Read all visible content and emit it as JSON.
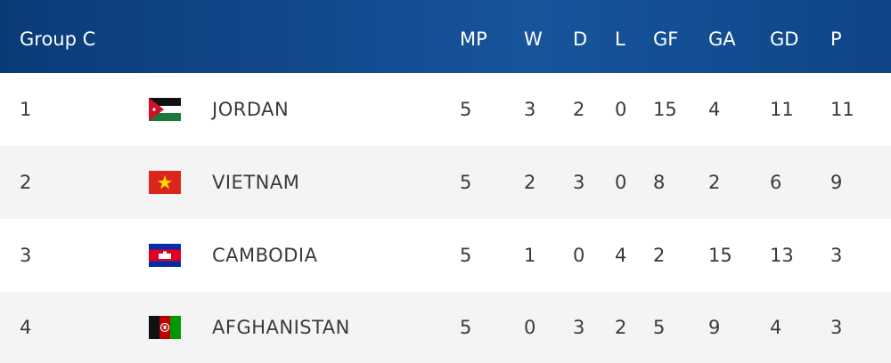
{
  "table": {
    "header": [
      "Group C",
      "MP",
      "W",
      "D",
      "L",
      "GF",
      "GA",
      "GD",
      "P"
    ],
    "rows": [
      [
        1,
        "JORDAN",
        5,
        3,
        2,
        0,
        15,
        4,
        11,
        11
      ],
      [
        2,
        "VIETNAM",
        5,
        2,
        3,
        0,
        8,
        2,
        6,
        9
      ],
      [
        3,
        "CAMBODIA",
        5,
        1,
        0,
        4,
        2,
        15,
        13,
        3
      ],
      [
        4,
        "AFGHANISTAN",
        5,
        0,
        3,
        2,
        5,
        9,
        4,
        3
      ]
    ]
  }
}
